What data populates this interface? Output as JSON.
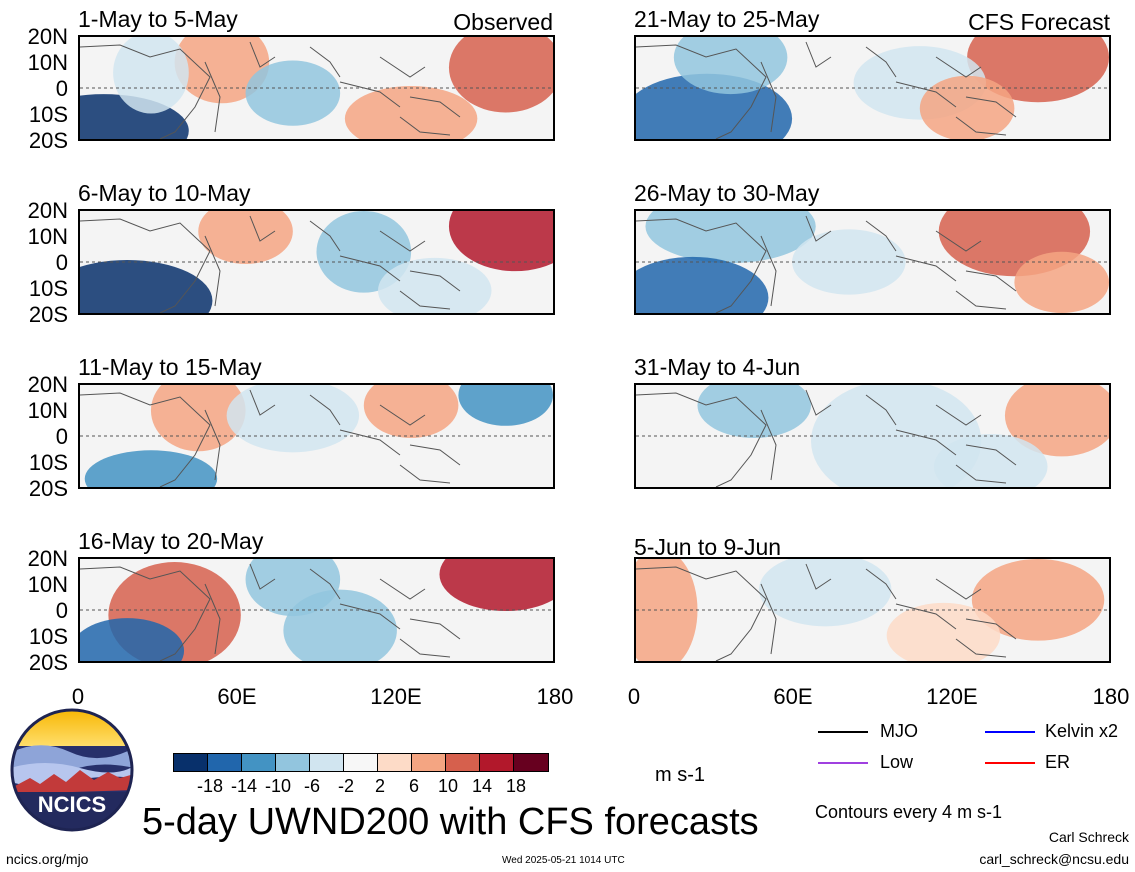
{
  "panels": [
    {
      "title": "1-May to 5-May",
      "label": "Observed"
    },
    {
      "title": "21-May to 25-May",
      "label": "CFS Forecast"
    },
    {
      "title": "6-May to 10-May",
      "label": ""
    },
    {
      "title": "26-May to 30-May",
      "label": ""
    },
    {
      "title": "11-May to 15-May",
      "label": ""
    },
    {
      "title": "31-May to 4-Jun",
      "label": ""
    },
    {
      "title": "16-May to 20-May",
      "label": ""
    },
    {
      "title": "5-Jun to 9-Jun",
      "label": ""
    }
  ],
  "lat_labels": [
    "20N",
    "10N",
    "0",
    "10S",
    "20S"
  ],
  "lon_labels": [
    "0",
    "60E",
    "120E",
    "180"
  ],
  "colorbar": {
    "colors": [
      "#08306b",
      "#2166ac",
      "#4393c3",
      "#92c5de",
      "#d1e5f0",
      "#f7f7f7",
      "#fddbc7",
      "#f4a582",
      "#d6604d",
      "#b2182b",
      "#67001f"
    ],
    "labels": [
      "-18",
      "-14",
      "-10",
      "-6",
      "-2",
      "2",
      "6",
      "10",
      "14",
      "18"
    ],
    "units": "m s-1"
  },
  "legend": [
    {
      "label": "MJO",
      "color": "#000000"
    },
    {
      "label": "Kelvin x2",
      "color": "#0000ff"
    },
    {
      "label": "Low",
      "color": "#a040e0"
    },
    {
      "label": "ER",
      "color": "#ff0000"
    }
  ],
  "contour_note": "Contours every 4 m s-1",
  "main_title": "5-day UWND200 with CFS forecasts",
  "logo_text": "NCICS",
  "url": "ncics.org/mjo",
  "timestamp": "Wed 2025-05-21 1014 UTC",
  "author": "Carl Schreck",
  "email": "carl_schreck@ncsu.edu"
}
